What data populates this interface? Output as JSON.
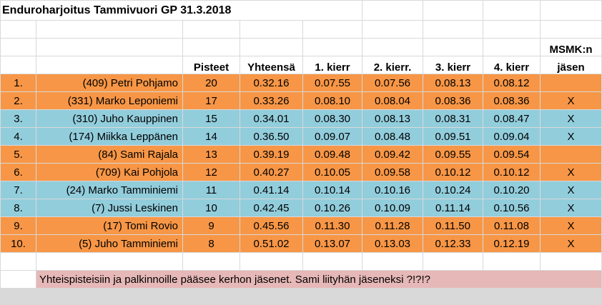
{
  "title": "Enduroharjoitus Tammivuori GP 31.3.2018",
  "headers": {
    "points": "Pisteet",
    "total": "Yhteensä",
    "lap1": "1. kierr",
    "lap2": "2. kierr.",
    "lap3": "3. kierr",
    "lap4": "4. kierr",
    "member_line1": "MSMK:n",
    "member_line2": "jäsen"
  },
  "rows": [
    {
      "pos": "1.",
      "name": "(409) Petri Pohjamo",
      "points": "20",
      "total": "0.32.16",
      "lap1": "0.07.55",
      "lap2": "0.07.56",
      "lap3": "0.08.13",
      "lap4": "0.08.12",
      "member": "",
      "color": "orange"
    },
    {
      "pos": "2.",
      "name": "(331) Marko Leponiemi",
      "points": "17",
      "total": "0.33.26",
      "lap1": "0.08.10",
      "lap2": "0.08.04",
      "lap3": "0.08.36",
      "lap4": "0.08.36",
      "member": "X",
      "color": "orange"
    },
    {
      "pos": "3.",
      "name": "(310) Juho Kauppinen",
      "points": "15",
      "total": "0.34.01",
      "lap1": "0.08.30",
      "lap2": "0.08.13",
      "lap3": "0.08.31",
      "lap4": "0.08.47",
      "member": "X",
      "color": "blue"
    },
    {
      "pos": "4.",
      "name": "(174) Miikka Leppänen",
      "points": "14",
      "total": "0.36.50",
      "lap1": "0.09.07",
      "lap2": "0.08.48",
      "lap3": "0.09.51",
      "lap4": "0.09.04",
      "member": "X",
      "color": "blue"
    },
    {
      "pos": "5.",
      "name": "(84) Sami Rajala",
      "points": "13",
      "total": "0.39.19",
      "lap1": "0.09.48",
      "lap2": "0.09.42",
      "lap3": "0.09.55",
      "lap4": "0.09.54",
      "member": "",
      "color": "orange"
    },
    {
      "pos": "6.",
      "name": "(709) Kai Pohjola",
      "points": "12",
      "total": "0.40.27",
      "lap1": "0.10.05",
      "lap2": "0.09.58",
      "lap3": "0.10.12",
      "lap4": "0.10.12",
      "member": "X",
      "color": "orange"
    },
    {
      "pos": "7.",
      "name": "(24) Marko Tamminiemi",
      "points": "11",
      "total": "0.41.14",
      "lap1": "0.10.14",
      "lap2": "0.10.16",
      "lap3": "0.10.24",
      "lap4": "0.10.20",
      "member": "X",
      "color": "blue"
    },
    {
      "pos": "8.",
      "name": "(7) Jussi Leskinen",
      "points": "10",
      "total": "0.42.45",
      "lap1": "0.10.26",
      "lap2": "0.10.09",
      "lap3": "0.11.14",
      "lap4": "0.10.56",
      "member": "X",
      "color": "blue"
    },
    {
      "pos": "9.",
      "name": "(17) Tomi Rovio",
      "points": "9",
      "total": "0.45.56",
      "lap1": "0.11.30",
      "lap2": "0.11.28",
      "lap3": "0.11.50",
      "lap4": "0.11.08",
      "member": "X",
      "color": "orange"
    },
    {
      "pos": "10.",
      "name": "(5) Juho Tamminiemi",
      "points": "8",
      "total": "0.51.02",
      "lap1": "0.13.07",
      "lap2": "0.13.03",
      "lap3": "0.12.33",
      "lap4": "0.12.19",
      "member": "X",
      "color": "orange"
    }
  ],
  "note": "Yhteispisteisiin ja palkinnoille pääsee kerhon jäsenet. Sami liityhän jäseneksi ?!?!?",
  "colors": {
    "orange": "#f79646",
    "blue": "#92cddc",
    "note_bg": "#e6b8b7"
  }
}
